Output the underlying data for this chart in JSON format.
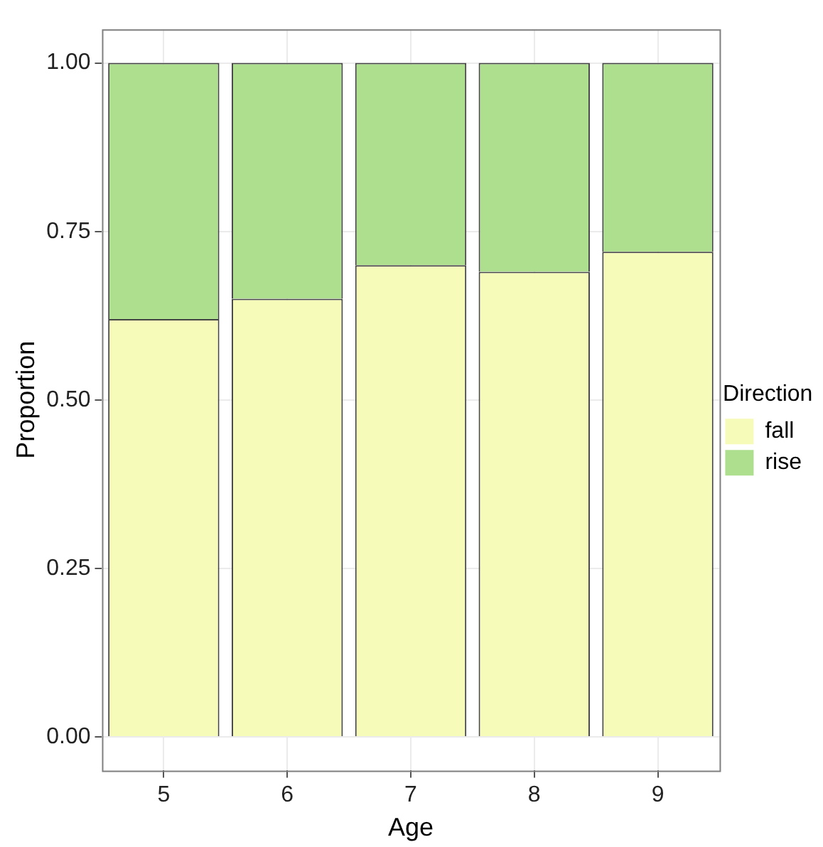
{
  "chart_data": {
    "type": "bar",
    "stacked": true,
    "xlabel": "Age",
    "ylabel": "Proportion",
    "legend_title": "Direction",
    "legend": "right",
    "grid": true,
    "categories": [
      "5",
      "6",
      "7",
      "8",
      "9"
    ],
    "series": [
      {
        "name": "fall",
        "color": "#f7fbb9",
        "values": [
          0.62,
          0.65,
          0.7,
          0.69,
          0.72
        ]
      },
      {
        "name": "rise",
        "color": "#addf8e",
        "values": [
          0.38,
          0.35,
          0.3,
          0.31,
          0.28
        ]
      }
    ],
    "ylim": [
      -0.05,
      1.05
    ],
    "yticks": [
      {
        "value": 0,
        "label": "0.00"
      },
      {
        "value": 0.25,
        "label": "0.25"
      },
      {
        "value": 0.5,
        "label": "0.50"
      },
      {
        "value": 0.75,
        "label": "0.75"
      },
      {
        "value": 1,
        "label": "1.00"
      }
    ]
  }
}
